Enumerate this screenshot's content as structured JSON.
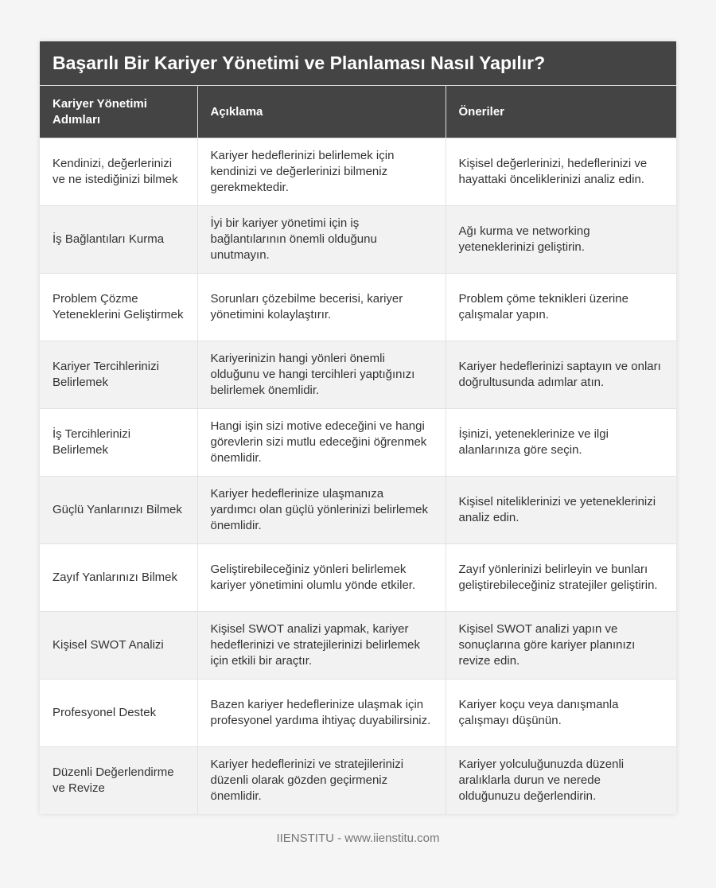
{
  "title": "Başarılı Bir Kariyer Yönetimi ve Planlaması Nasıl Yapılır?",
  "columns": [
    "Kariyer Yönetimi Adımları",
    "Açıklama",
    "Öneriler"
  ],
  "rows": [
    [
      "Kendinizi, değerlerinizi ve ne istediğinizi bilmek",
      "Kariyer hedeflerinizi belirlemek için kendinizi ve değerlerinizi bilmeniz gerekmektedir.",
      "Kişisel değerlerinizi, hedeflerinizi ve hayattaki önceliklerinizi analiz edin."
    ],
    [
      "İş Bağlantıları Kurma",
      "İyi bir kariyer yönetimi için iş bağlantılarının önemli olduğunu unutmayın.",
      "Ağı kurma ve networking yeteneklerinizi geliştirin."
    ],
    [
      "Problem Çözme Yeteneklerini Geliştirmek",
      "Sorunları çözebilme becerisi, kariyer yönetimini kolaylaştırır.",
      "Problem çöme teknikleri üzerine çalışmalar yapın."
    ],
    [
      "Kariyer Tercihlerinizi Belirlemek",
      "Kariyerinizin hangi yönleri önemli olduğunu ve hangi tercihleri yaptığınızı belirlemek önemlidir.",
      "Kariyer hedeflerinizi saptayın ve onları doğrultusunda adımlar atın."
    ],
    [
      "İş Tercihlerinizi Belirlemek",
      "Hangi işin sizi motive edeceğini ve hangi görevlerin sizi mutlu edeceğini öğrenmek önemlidir.",
      "İşinizi, yeteneklerinize ve ilgi alanlarınıza göre seçin."
    ],
    [
      "Güçlü Yanlarınızı Bilmek",
      "Kariyer hedeflerinize ulaşmanıza yardımcı olan güçlü yönlerinizi belirlemek önemlidir.",
      "Kişisel niteliklerinizi ve yeteneklerinizi analiz edin."
    ],
    [
      "Zayıf Yanlarınızı Bilmek",
      "Geliştirebileceğiniz yönleri belirlemek kariyer yönetimini olumlu yönde etkiler.",
      "Zayıf yönlerinizi belirleyin ve bunları geliştirebileceğiniz stratejiler geliştirin."
    ],
    [
      "Kişisel SWOT Analizi",
      "Kişisel SWOT analizi yapmak, kariyer hedeflerinizi ve stratejilerinizi belirlemek için etkili bir araçtır.",
      "Kişisel SWOT analizi yapın ve sonuçlarına göre kariyer planınızı revize edin."
    ],
    [
      "Profesyonel Destek",
      "Bazen kariyer hedeflerinize ulaşmak için profesyonel yardıma ihtiyaç duyabilirsiniz.",
      "Kariyer koçu veya danışmanla çalışmayı düşünün."
    ],
    [
      "Düzenli Değerlendirme ve Revize",
      "Kariyer hedeflerinizi ve stratejilerinizi düzenli olarak gözden geçirmeniz önemlidir.",
      "Kariyer yolculuğunuzda düzenli aralıklarla durun ve nerede olduğunuzu değerlendirin."
    ]
  ],
  "footer": "IIENSTITU - www.iienstitu.com",
  "colors": {
    "header_bg": "#444444",
    "alt_row_bg": "#f2f2f2"
  }
}
